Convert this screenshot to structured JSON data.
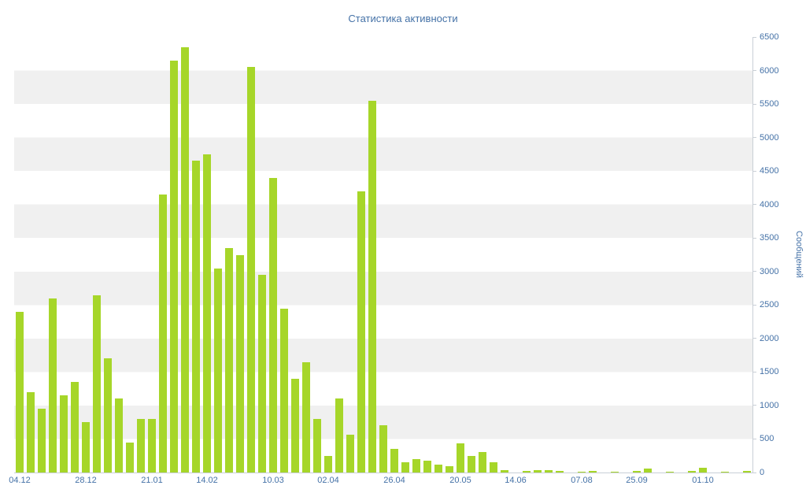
{
  "chart_data": {
    "type": "bar",
    "title": "Статистика активности",
    "ylabel": "Сообщений",
    "xlabel": "",
    "ylim": [
      0,
      6500
    ],
    "grid": "horizontal-bands-500",
    "legend_position": "none",
    "colors": {
      "bar": "#a6d629",
      "text": "#4572a7",
      "band": "#f0f0f0",
      "axis": "#c9cfd6",
      "background": "#ffffff"
    },
    "y_ticks": [
      0,
      500,
      1000,
      1500,
      2000,
      2500,
      3000,
      3500,
      4000,
      4500,
      5000,
      5500,
      6000,
      6500
    ],
    "x_tick_labels": [
      {
        "label": "04.12",
        "index": 0
      },
      {
        "label": "28.12",
        "index": 6
      },
      {
        "label": "21.01",
        "index": 12
      },
      {
        "label": "14.02",
        "index": 17
      },
      {
        "label": "10.03",
        "index": 23
      },
      {
        "label": "02.04",
        "index": 28
      },
      {
        "label": "26.04",
        "index": 34
      },
      {
        "label": "20.05",
        "index": 40
      },
      {
        "label": "14.06",
        "index": 45
      },
      {
        "label": "07.08",
        "index": 51
      },
      {
        "label": "25.09",
        "index": 56
      },
      {
        "label": "01.10",
        "index": 62
      }
    ],
    "values": [
      2400,
      1200,
      950,
      2600,
      1150,
      1350,
      750,
      2650,
      1700,
      1100,
      450,
      800,
      800,
      4150,
      6150,
      6350,
      4650,
      4750,
      3050,
      3350,
      3250,
      6050,
      2950,
      4400,
      2450,
      1400,
      1650,
      800,
      250,
      1100,
      570,
      4200,
      5550,
      700,
      350,
      150,
      200,
      180,
      120,
      100,
      430,
      250,
      300,
      150,
      30,
      0,
      25,
      40,
      30,
      20,
      0,
      15,
      20,
      0,
      15,
      0,
      20,
      60,
      0,
      15,
      0,
      20,
      70,
      0,
      15,
      0,
      20
    ]
  }
}
